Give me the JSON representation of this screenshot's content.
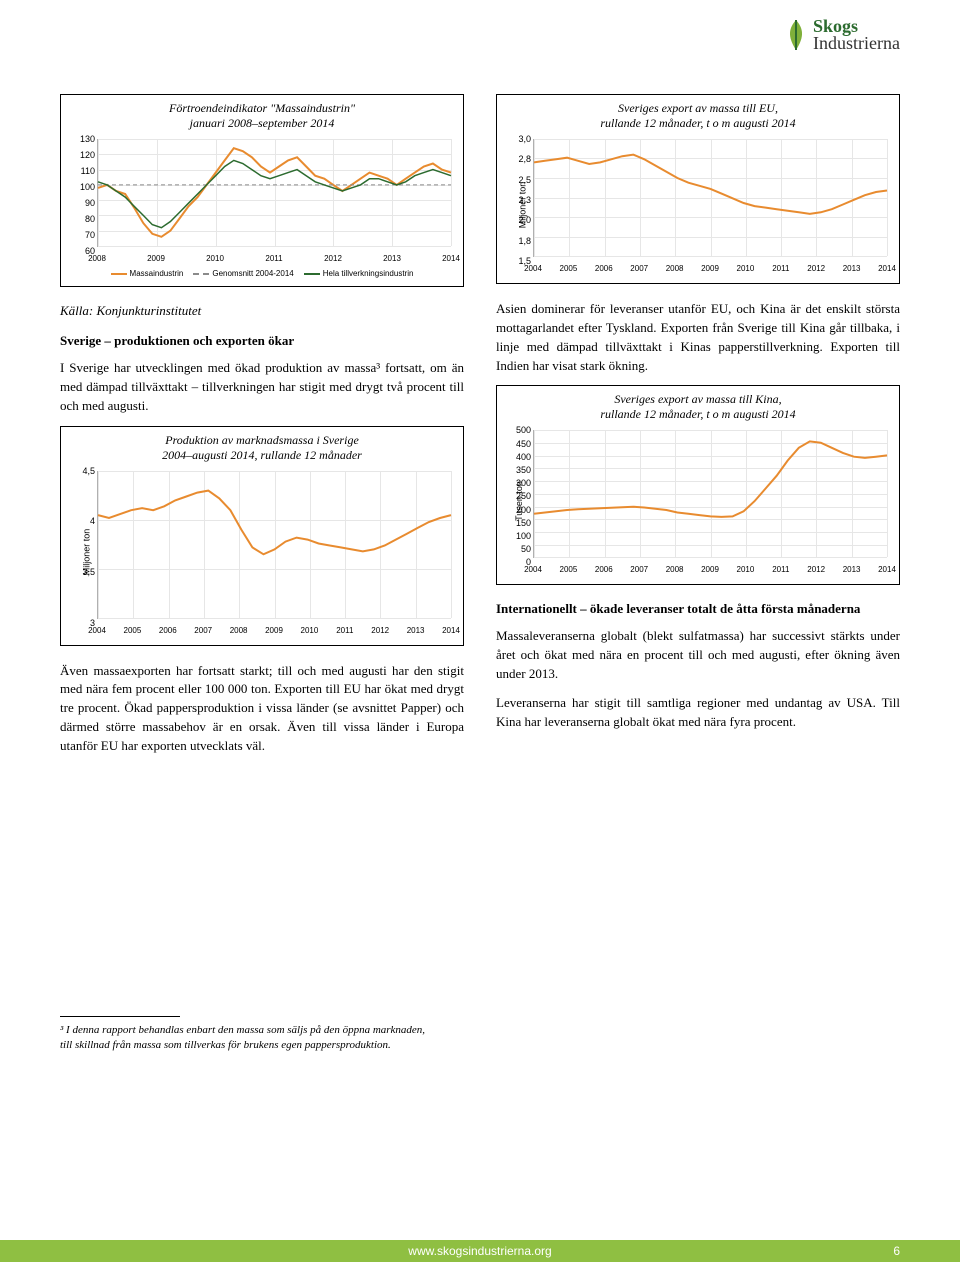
{
  "logo": {
    "line1": "Skogs",
    "line2": "Industrierna"
  },
  "colors": {
    "orange": "#e88b2f",
    "green": "#2c6b2f",
    "grid": "#e6e6e6",
    "axis": "#b0b0b0",
    "dash": "#8a8a8a",
    "footer_bg": "#8fbf42"
  },
  "chart_fortroende": {
    "type": "line",
    "title": "Förtroendeindikator \"Massaindustrin\"\njanuari 2008–september 2014",
    "xticks": [
      "2008",
      "2009",
      "2010",
      "2011",
      "2012",
      "2013",
      "2014"
    ],
    "ylim": [
      60,
      130
    ],
    "ytick_step": 10,
    "series": [
      {
        "name": "Massaindustrin",
        "color": "#e88b2f",
        "width": 2,
        "dash": null,
        "points": [
          98,
          100,
          96,
          94,
          85,
          75,
          68,
          66,
          70,
          78,
          86,
          92,
          100,
          108,
          116,
          124,
          122,
          118,
          112,
          108,
          112,
          116,
          118,
          112,
          106,
          104,
          100,
          96,
          100,
          104,
          108,
          106,
          104,
          100,
          104,
          108,
          112,
          114,
          110,
          108
        ]
      },
      {
        "name": "Genomsnitt 2004-2014",
        "color": "#8a8a8a",
        "width": 1,
        "dash": "4 3",
        "points": [
          100,
          100,
          100,
          100,
          100,
          100,
          100,
          100,
          100,
          100,
          100,
          100,
          100,
          100,
          100,
          100,
          100,
          100,
          100,
          100,
          100,
          100,
          100,
          100,
          100,
          100,
          100,
          100,
          100,
          100,
          100,
          100,
          100,
          100,
          100,
          100,
          100,
          100,
          100,
          100
        ]
      },
      {
        "name": "Hela tillverkningsindustrin",
        "color": "#2c6b2f",
        "width": 1.5,
        "dash": null,
        "points": [
          102,
          100,
          96,
          92,
          86,
          80,
          74,
          72,
          76,
          82,
          88,
          94,
          100,
          106,
          112,
          116,
          114,
          110,
          106,
          104,
          106,
          108,
          110,
          106,
          102,
          100,
          98,
          96,
          98,
          100,
          104,
          104,
          102,
          100,
          102,
          106,
          108,
          110,
          108,
          106
        ]
      }
    ],
    "legend": [
      "Massaindustrin",
      "Genomsnitt 2004-2014",
      "Hela tillverkningsindustrin"
    ],
    "legend_colors": [
      "#e88b2f",
      "#8a8a8a",
      "#2c6b2f"
    ],
    "legend_dash": [
      null,
      "4 3",
      null
    ]
  },
  "source_line": "Källa: Konjunkturinstitutet",
  "section_sverige_h": "Sverige – produktionen och exporten ökar",
  "para1": "I Sverige har utvecklingen med ökad produktion av massa³ fortsatt, om än med dämpad tillväxttakt – tillverkningen har stigit med drygt två procent till och med augusti.",
  "chart_produktion": {
    "type": "line",
    "title": "Produktion av marknadsmassa i Sverige\n2004–augusti 2014, rullande 12 månader",
    "ylabel": "Miljoner ton",
    "xticks": [
      "2004",
      "2005",
      "2006",
      "2007",
      "2008",
      "2009",
      "2010",
      "2011",
      "2012",
      "2013",
      "2014"
    ],
    "ylim": [
      3.0,
      4.5
    ],
    "ytick_step": 0.5,
    "series": [
      {
        "name": "Produktion",
        "color": "#e88b2f",
        "width": 2,
        "dash": null,
        "points": [
          4.05,
          4.02,
          4.06,
          4.1,
          4.12,
          4.1,
          4.14,
          4.2,
          4.24,
          4.28,
          4.3,
          4.22,
          4.1,
          3.9,
          3.72,
          3.65,
          3.7,
          3.78,
          3.82,
          3.8,
          3.76,
          3.74,
          3.72,
          3.7,
          3.68,
          3.7,
          3.74,
          3.8,
          3.86,
          3.92,
          3.98,
          4.02,
          4.05
        ]
      }
    ]
  },
  "para2": "Även massaexporten har fortsatt starkt; till och med augusti har den stigit med nära fem procent eller 100 000 ton. Exporten till EU har ökat med drygt tre procent. Ökad pappersproduktion i vissa länder (se avsnittet Papper) och därmed större massabehov är en orsak. Även till vissa länder i Europa utanför EU har exporten utvecklats väl.",
  "chart_export_eu": {
    "type": "line",
    "title": "Sveriges export av massa till EU,\nrullande 12 månader, t o m augusti 2014",
    "ylabel": "Miljoner ton",
    "xticks": [
      "2004",
      "2005",
      "2006",
      "2007",
      "2008",
      "2009",
      "2010",
      "2011",
      "2012",
      "2013",
      "2014"
    ],
    "ylim": [
      1.5,
      3.0
    ],
    "ytick_step_labels": [
      "1,5",
      "1,8",
      "2,0",
      "2,3",
      "2,5",
      "2,8",
      "3,0"
    ],
    "ytick_step": 0.25,
    "series": [
      {
        "name": "Export EU",
        "color": "#e88b2f",
        "width": 2,
        "dash": null,
        "points": [
          2.7,
          2.72,
          2.74,
          2.76,
          2.72,
          2.68,
          2.7,
          2.74,
          2.78,
          2.8,
          2.74,
          2.66,
          2.58,
          2.5,
          2.44,
          2.4,
          2.36,
          2.3,
          2.24,
          2.18,
          2.14,
          2.12,
          2.1,
          2.08,
          2.06,
          2.04,
          2.06,
          2.1,
          2.16,
          2.22,
          2.28,
          2.32,
          2.34
        ]
      }
    ]
  },
  "para3": "Asien dominerar för leveranser utanför EU, och Kina är det enskilt största mottagarlandet efter Tyskland. Exporten från Sverige till Kina går tillbaka, i linje med dämpad tillväxttakt i Kinas papperstillverkning. Exporten till Indien har visat stark ökning.",
  "chart_export_kina": {
    "type": "line",
    "title": "Sveriges export av massa till Kina,\nrullande 12 månader, t o m augusti 2014",
    "ylabel": "Tusen ton",
    "xticks": [
      "2004",
      "2005",
      "2006",
      "2007",
      "2008",
      "2009",
      "2010",
      "2011",
      "2012",
      "2013",
      "2014"
    ],
    "ylim": [
      0,
      500
    ],
    "ytick_step": 50,
    "series": [
      {
        "name": "Export Kina",
        "color": "#e88b2f",
        "width": 2,
        "dash": null,
        "points": [
          170,
          175,
          180,
          185,
          188,
          190,
          192,
          194,
          196,
          198,
          195,
          190,
          185,
          175,
          170,
          165,
          160,
          158,
          160,
          180,
          220,
          270,
          320,
          380,
          430,
          455,
          450,
          430,
          410,
          395,
          390,
          395,
          400
        ]
      }
    ]
  },
  "section_int_h": "Internationellt – ökade leveranser totalt de åtta första månaderna",
  "para4": "Massaleveranserna globalt (blekt sulfatmassa) har successivt stärkts under året och ökat med nära en procent till och med augusti, efter ökning även under 2013.",
  "para5": "Leveranserna har stigit till samtliga regioner med undantag av USA. Till Kina har leveranserna globalt ökat med nära fyra procent.",
  "footnote": "³ I denna rapport behandlas enbart den massa som säljs på den öppna marknaden, till skillnad från massa som tillverkas för brukens egen pappersproduktion.",
  "footer_url": "www.skogsindustrierna.org",
  "page_number": "6"
}
